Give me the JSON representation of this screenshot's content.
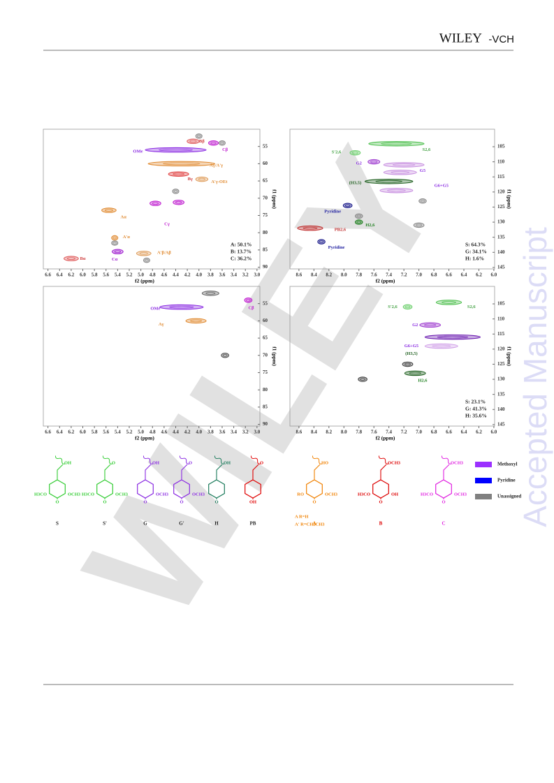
{
  "header": {
    "brand": "WILEY",
    "brand_suffix": "-VCH"
  },
  "watermark": {
    "side": "Accepted Manuscript",
    "diagonal": "WILEY"
  },
  "figure": {
    "panels": [
      {
        "xlabel": "f2 (ppm)",
        "ylabel": "f1 (ppm)",
        "xlim": [
          6.68,
          2.95
        ],
        "ylim": [
          50,
          90.5
        ],
        "xticks": [
          6.6,
          6.4,
          6.2,
          {
            "value": 6.0,
            "label": "6.0"
          },
          5.8,
          5.6,
          5.4,
          5.2,
          {
            "value": 5.0,
            "label": "5.0"
          },
          4.8,
          4.6,
          4.4,
          4.2,
          {
            "value": 4.0,
            "label": "4.0"
          },
          3.8,
          3.6,
          3.4,
          3.2,
          {
            "value": 3.0,
            "label": "3.0"
          }
        ],
        "yticks": [
          55,
          60,
          65,
          70,
          75,
          80,
          85,
          90
        ],
        "peaks": [
          {
            "x": 4.1,
            "y": 53.5,
            "span": 0.08,
            "color": "#e06060"
          },
          {
            "x": 3.75,
            "y": 54,
            "span": 0.06,
            "color": "#c020d0"
          },
          {
            "x": 4.4,
            "y": 56,
            "span": 0.5,
            "color": "#8a2be2"
          },
          {
            "x": 4.3,
            "y": 60,
            "span": 0.55,
            "color": "#e08a30"
          },
          {
            "x": 4.35,
            "y": 63,
            "span": 0.15,
            "color": "#e04040"
          },
          {
            "x": 3.95,
            "y": 64.5,
            "span": 0.08,
            "color": "#e0a060"
          },
          {
            "x": 4.75,
            "y": 71.5,
            "span": 0.07,
            "color": "#c020d0"
          },
          {
            "x": 4.35,
            "y": 71.2,
            "span": 0.07,
            "color": "#c020d0"
          },
          {
            "x": 5.55,
            "y": 73.5,
            "span": 0.1,
            "color": "#e08a30"
          },
          {
            "x": 5.45,
            "y": 81.5,
            "span": 0.03,
            "color": "#e08a30"
          },
          {
            "x": 5.4,
            "y": 85.5,
            "span": 0.07,
            "color": "#a020d0"
          },
          {
            "x": 4.95,
            "y": 86,
            "span": 0.1,
            "color": "#e0a060"
          },
          {
            "x": 6.2,
            "y": 87.5,
            "span": 0.1,
            "color": "#e06060"
          },
          {
            "x": 4.0,
            "y": 52,
            "span": 0.03,
            "color": "#888888"
          },
          {
            "x": 3.6,
            "y": 54,
            "span": 0.03,
            "color": "#888888"
          },
          {
            "x": 5.45,
            "y": 83,
            "span": 0.03,
            "color": "#888888"
          },
          {
            "x": 4.4,
            "y": 68,
            "span": 0.03,
            "color": "#888888"
          },
          {
            "x": 4.9,
            "y": 88,
            "span": 0.03,
            "color": "#888888"
          }
        ],
        "annotations": [
          {
            "text": "Bβ",
            "x": 3.95,
            "y": 53.5,
            "color": "#d04040"
          },
          {
            "text": "Cβ",
            "x": 3.55,
            "y": 56,
            "color": "#c020d0"
          },
          {
            "text": "OMe",
            "x": 5.05,
            "y": 56.5,
            "color": "#8a2be2"
          },
          {
            "text": "Aγ/A'γ",
            "x": 3.7,
            "y": 60.5,
            "color": "#e08a30"
          },
          {
            "text": "Bγ",
            "x": 4.15,
            "y": 64.5,
            "color": "#d04040"
          },
          {
            "text": "A'γ-OEt",
            "x": 3.65,
            "y": 65.3,
            "color": "#e08a30"
          },
          {
            "text": "Cγ",
            "x": 4.55,
            "y": 77.5,
            "color": "#c020d0"
          },
          {
            "text": "Aα",
            "x": 5.3,
            "y": 75.5,
            "color": "#e08a30"
          },
          {
            "text": "A'α",
            "x": 5.25,
            "y": 81.3,
            "color": "#e08a30"
          },
          {
            "text": "Cα",
            "x": 5.45,
            "y": 87.8,
            "color": "#a020d0"
          },
          {
            "text": "A'β/Aβ",
            "x": 4.6,
            "y": 85.8,
            "color": "#e08a30"
          },
          {
            "text": "Bα",
            "x": 6.0,
            "y": 87.6,
            "color": "#d04040"
          }
        ],
        "stats": [
          "A: 50.1%",
          "B: 13.7%",
          "C: 36.2%"
        ]
      },
      {
        "xlabel": "f2 (ppm)",
        "ylabel": "f1 (ppm)",
        "xlim": [
          8.72,
          5.99
        ],
        "ylim": [
          99.2,
          145.5
        ],
        "xticks": [
          8.6,
          8.4,
          8.2,
          {
            "value": 8.0,
            "label": "8.0"
          },
          7.8,
          7.6,
          7.4,
          7.2,
          {
            "value": 7.0,
            "label": "7.0"
          },
          6.8,
          6.6,
          6.4,
          6.2,
          {
            "value": 6.0,
            "label": "6.0"
          }
        ],
        "yticks": [
          105,
          110,
          115,
          120,
          125,
          130,
          135,
          140,
          145
        ],
        "peaks": [
          {
            "x": 7.3,
            "y": 104,
            "span": 0.35,
            "color": "#50c050"
          },
          {
            "x": 7.85,
            "y": 107,
            "span": 0.05,
            "color": "#70d070"
          },
          {
            "x": 7.6,
            "y": 110,
            "span": 0.06,
            "color": "#a040d0"
          },
          {
            "x": 7.2,
            "y": 111,
            "span": 0.25,
            "color": "#c890e0"
          },
          {
            "x": 7.25,
            "y": 113.5,
            "span": 0.2,
            "color": "#c890e0"
          },
          {
            "x": 7.4,
            "y": 116.5,
            "span": 0.3,
            "color": "#206020"
          },
          {
            "x": 7.3,
            "y": 119.5,
            "span": 0.2,
            "color": "#c890e0"
          },
          {
            "x": 7.95,
            "y": 124.5,
            "span": 0.04,
            "color": "#1a1a8a"
          },
          {
            "x": 7.8,
            "y": 130,
            "span": 0.03,
            "color": "#208020"
          },
          {
            "x": 8.45,
            "y": 132,
            "span": 0.15,
            "color": "#c03030"
          },
          {
            "x": 8.3,
            "y": 136.5,
            "span": 0.03,
            "color": "#1a1a8a"
          },
          {
            "x": 7.0,
            "y": 131,
            "span": 0.05,
            "color": "#888888"
          },
          {
            "x": 6.95,
            "y": 123,
            "span": 0.03,
            "color": "#888888"
          },
          {
            "x": 7.8,
            "y": 128,
            "span": 0.03,
            "color": "#888888"
          }
        ],
        "annotations": [
          {
            "text": "S2,6",
            "x": 6.9,
            "y": 106,
            "color": "#40a040"
          },
          {
            "text": "S'2,6",
            "x": 8.1,
            "y": 106.8,
            "color": "#40a040"
          },
          {
            "text": "G2",
            "x": 7.8,
            "y": 110.5,
            "color": "#8a2be2"
          },
          {
            "text": "G5",
            "x": 6.95,
            "y": 113,
            "color": "#8a2be2"
          },
          {
            "text": "(H3,5)",
            "x": 7.85,
            "y": 117,
            "color": "#206020"
          },
          {
            "text": "G6+G5",
            "x": 6.7,
            "y": 118,
            "color": "#8a2be2"
          },
          {
            "text": "Pyridine",
            "x": 8.15,
            "y": 126.5,
            "color": "#2020a0"
          },
          {
            "text": "H2,6",
            "x": 7.65,
            "y": 131,
            "color": "#208020"
          },
          {
            "text": "PB2,6",
            "x": 8.05,
            "y": 132.5,
            "color": "#c03030"
          },
          {
            "text": "Pyridine",
            "x": 8.1,
            "y": 138.5,
            "color": "#2020a0"
          }
        ],
        "stats": [
          "S: 64.3%",
          "G: 34.1%",
          "H: 1.6%"
        ]
      },
      {
        "xlabel": "f2 (ppm)",
        "ylabel": "f1 (ppm)",
        "xlim": [
          6.68,
          2.95
        ],
        "ylim": [
          50,
          90.5
        ],
        "xticks": [
          6.6,
          6.4,
          6.2,
          {
            "value": 6.0,
            "label": "6.0"
          },
          5.8,
          5.6,
          5.4,
          5.2,
          {
            "value": 5.0,
            "label": "5.0"
          },
          4.8,
          4.6,
          4.4,
          4.2,
          {
            "value": 4.0,
            "label": "4.0"
          },
          3.8,
          3.6,
          3.4,
          3.2,
          {
            "value": 3.0,
            "label": "3.0"
          }
        ],
        "yticks": [
          55,
          60,
          65,
          70,
          75,
          80,
          85,
          90
        ],
        "peaks": [
          {
            "x": 3.8,
            "y": 52,
            "span": 0.12,
            "color": "#666666"
          },
          {
            "x": 3.15,
            "y": 54,
            "span": 0.04,
            "color": "#c020d0"
          },
          {
            "x": 4.3,
            "y": 56,
            "span": 0.35,
            "color": "#8a2be2"
          },
          {
            "x": 4.05,
            "y": 60,
            "span": 0.15,
            "color": "#e08a30"
          },
          {
            "x": 3.55,
            "y": 70,
            "span": 0.04,
            "color": "#555555"
          }
        ],
        "annotations": [
          {
            "text": "OMe",
            "x": 4.75,
            "y": 56.5,
            "color": "#8a2be2"
          },
          {
            "text": "Cβ",
            "x": 3.1,
            "y": 56.3,
            "color": "#c020d0"
          },
          {
            "text": "Aγ",
            "x": 4.65,
            "y": 61,
            "color": "#e08a30"
          }
        ],
        "stats": []
      },
      {
        "xlabel": "f2 (ppm)",
        "ylabel": "f1 (ppm)",
        "xlim": [
          8.72,
          5.99
        ],
        "ylim": [
          99.2,
          145.5
        ],
        "xticks": [
          8.6,
          8.4,
          8.2,
          {
            "value": 8.0,
            "label": "8.0"
          },
          7.8,
          7.6,
          7.4,
          7.2,
          {
            "value": 7.0,
            "label": "7.0"
          },
          6.8,
          6.6,
          6.4,
          6.2,
          {
            "value": 6.0,
            "label": "6.0"
          }
        ],
        "yticks": [
          105,
          110,
          115,
          120,
          125,
          130,
          135,
          140,
          145
        ],
        "peaks": [
          {
            "x": 7.15,
            "y": 106,
            "span": 0.04,
            "color": "#70d070"
          },
          {
            "x": 6.6,
            "y": 104.5,
            "span": 0.15,
            "color": "#50c050"
          },
          {
            "x": 6.85,
            "y": 112,
            "span": 0.12,
            "color": "#a040d0"
          },
          {
            "x": 6.55,
            "y": 116,
            "span": 0.35,
            "color": "#6a1ab0"
          },
          {
            "x": 6.7,
            "y": 119,
            "span": 0.2,
            "color": "#d0a0e8"
          },
          {
            "x": 7.15,
            "y": 125,
            "span": 0.05,
            "color": "#444444"
          },
          {
            "x": 7.05,
            "y": 128,
            "span": 0.12,
            "color": "#206020"
          },
          {
            "x": 7.75,
            "y": 130,
            "span": 0.04,
            "color": "#444444"
          }
        ],
        "annotations": [
          {
            "text": "S'2,6",
            "x": 7.35,
            "y": 106,
            "color": "#40a040"
          },
          {
            "text": "S2,6",
            "x": 6.3,
            "y": 106,
            "color": "#40a040"
          },
          {
            "text": "G2",
            "x": 7.05,
            "y": 112,
            "color": "#8a2be2"
          },
          {
            "text": "G6+G5",
            "x": 7.1,
            "y": 119,
            "color": "#8a2be2"
          },
          {
            "text": "(H3,5)",
            "x": 7.1,
            "y": 121.5,
            "color": "#206020"
          },
          {
            "text": "H2,6",
            "x": 6.95,
            "y": 130.5,
            "color": "#208020"
          }
        ],
        "stats": [
          "S: 23.1%",
          "G: 41.3%",
          "H: 35.6%"
        ]
      }
    ],
    "structures": [
      {
        "name": "S",
        "color": "#33cc33",
        "top": "OH",
        "left": "H3CO",
        "right": "OCH3",
        "bottom": "O"
      },
      {
        "name": "S'",
        "color": "#33cc33",
        "top": "O",
        "left": "H3CO",
        "right": "OCH3",
        "bottom": "O"
      },
      {
        "name": "G",
        "color": "#8a2be2",
        "top": "OH",
        "right": "OCH3",
        "bottom": "O"
      },
      {
        "name": "G'",
        "color": "#8a2be2",
        "top": "O",
        "right": "OCH3",
        "bottom": "O"
      },
      {
        "name": "H",
        "color": "#1a7a5a",
        "top": "OH",
        "bottom": "O"
      },
      {
        "name": "PB",
        "color": "#e00000",
        "top": "O",
        "bottom": "OH"
      },
      {
        "name": "A",
        "color": "#f08000",
        "top": "HO",
        "left": "RO",
        "right": "OCH3",
        "bottom": "O",
        "notes": [
          "A     R=H",
          "A'    R=CH2CH3"
        ]
      },
      {
        "name": "B",
        "color": "#dd0000",
        "top": "OCH3",
        "left": "H3CO",
        "right": "OH",
        "bottom": "O"
      },
      {
        "name": "C",
        "color": "#e020e0",
        "top": "OCH3",
        "left": "H3CO",
        "right": "OCH3",
        "bottom": "O"
      }
    ],
    "legend": [
      {
        "name": "Methoxyl",
        "color": "#9b30ff"
      },
      {
        "name": "Pyridine",
        "color": "#0000ff"
      },
      {
        "name": "Unassigned",
        "color": "#808080"
      }
    ]
  }
}
